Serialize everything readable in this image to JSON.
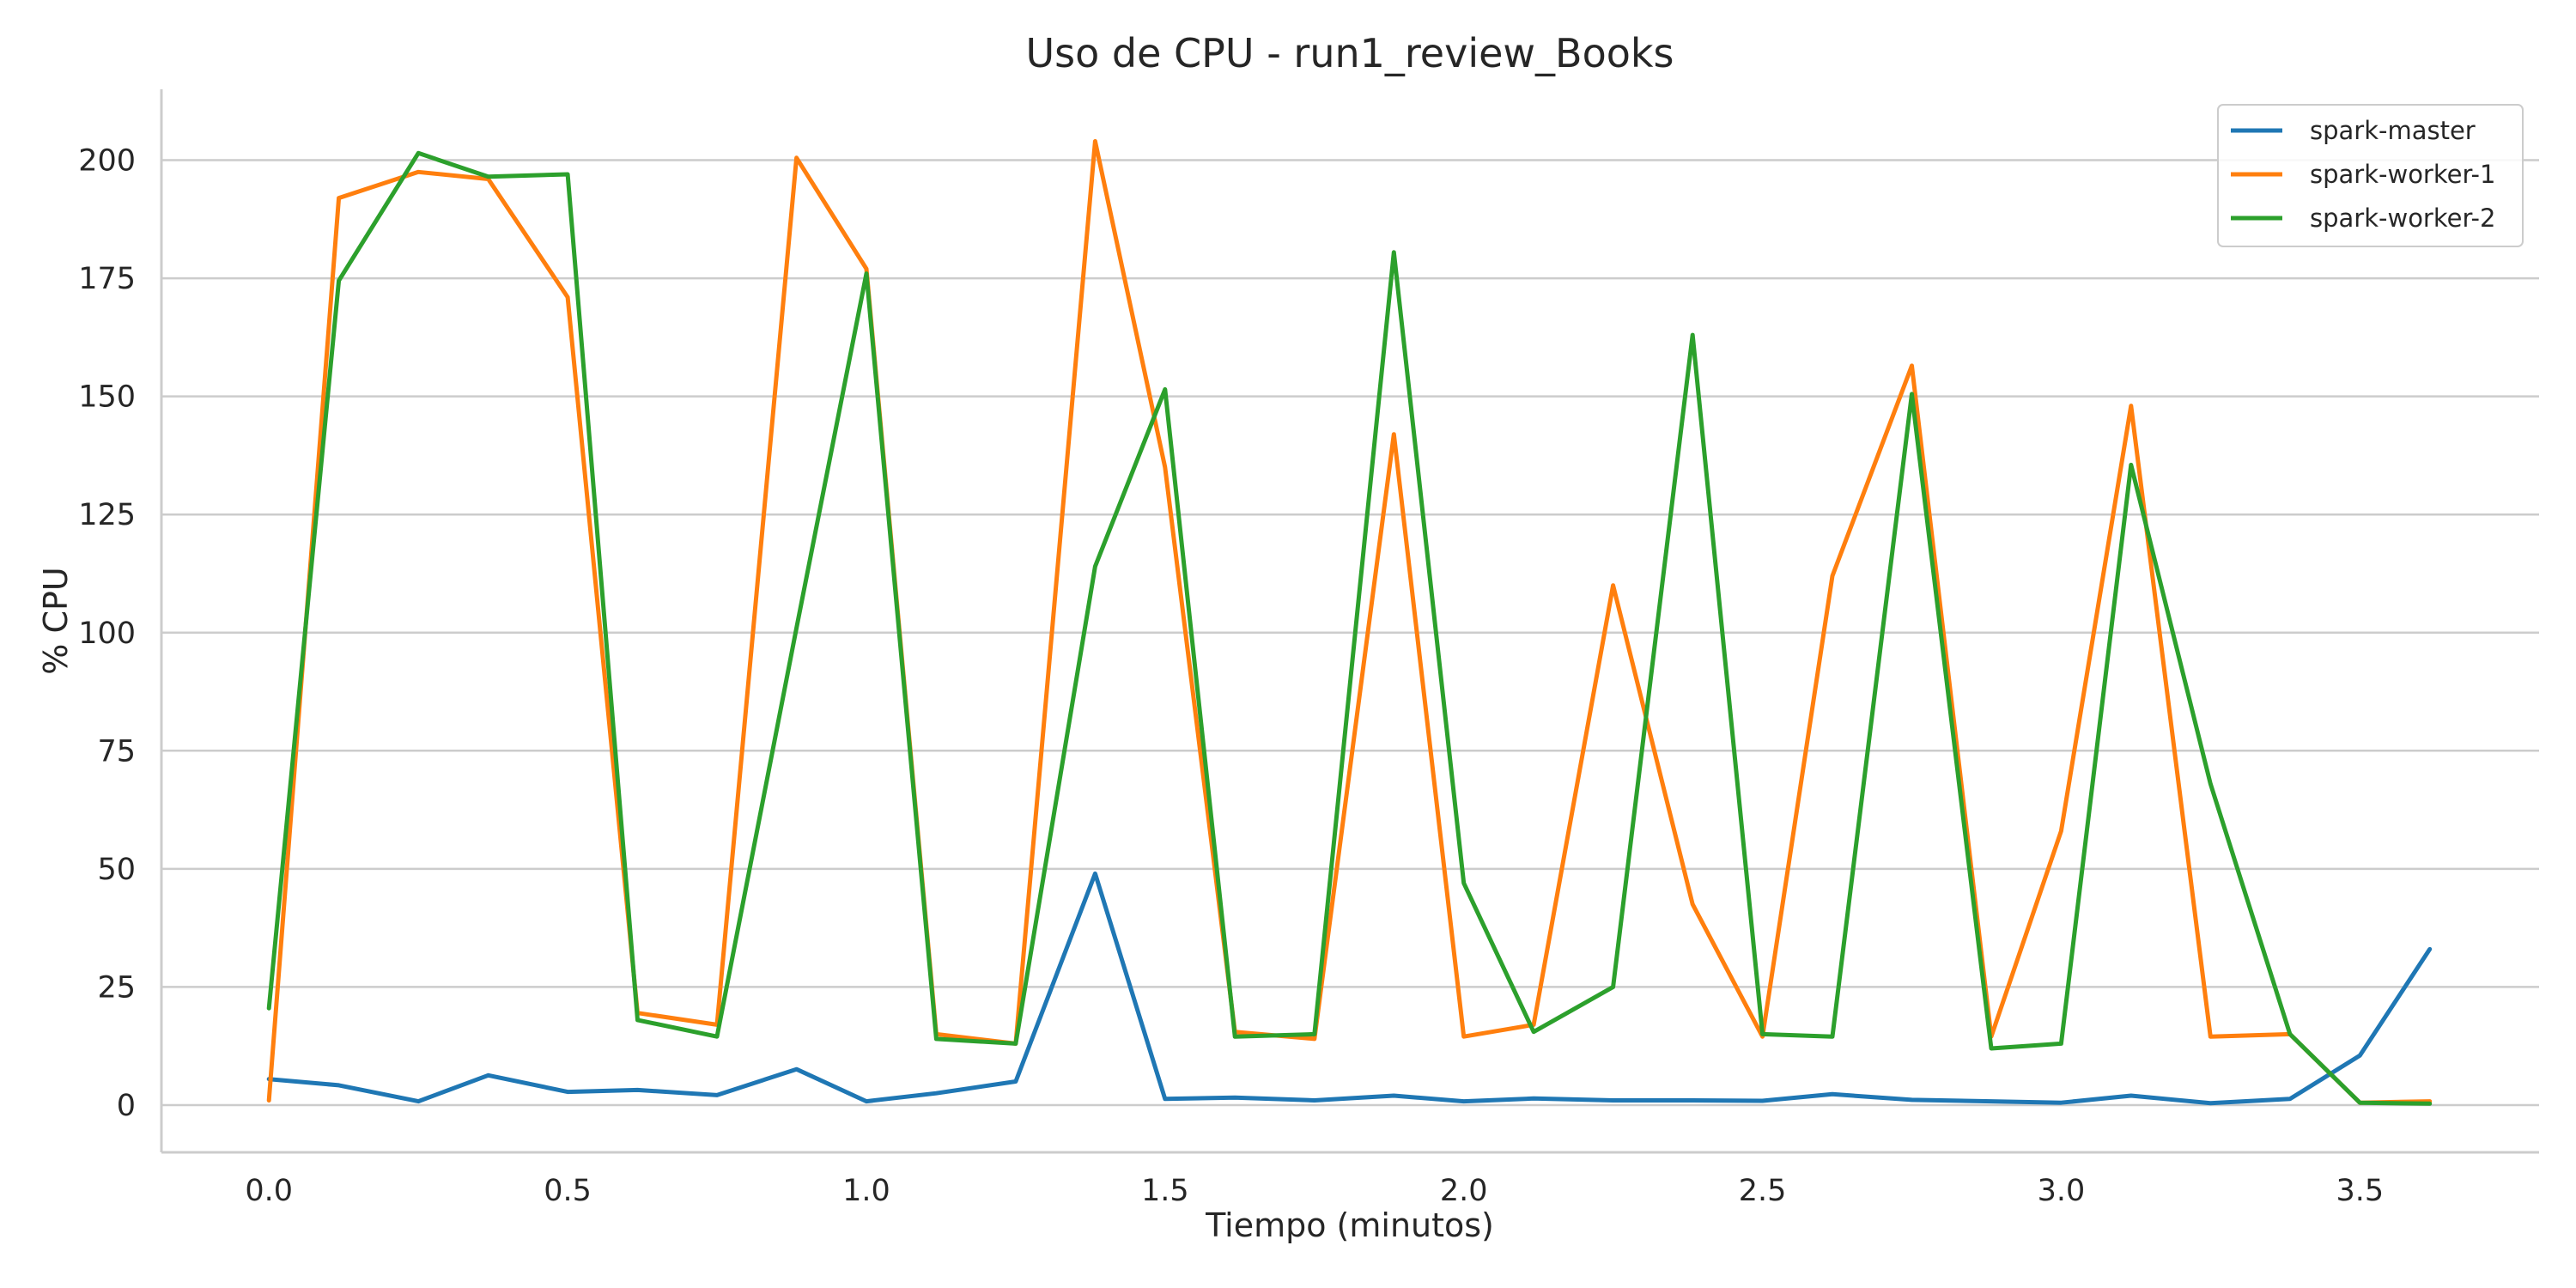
{
  "chart_data": {
    "type": "line",
    "title": "Uso de CPU - run1_review_Books",
    "xlabel": "Tiempo (minutos)",
    "ylabel": "% CPU",
    "xlim": [
      -0.18,
      3.8
    ],
    "ylim": [
      -10,
      215
    ],
    "xticks": [
      0.0,
      0.5,
      1.0,
      1.5,
      2.0,
      2.5,
      3.0,
      3.5
    ],
    "xtick_labels": [
      "0.0",
      "0.5",
      "1.0",
      "1.5",
      "2.0",
      "2.5",
      "3.0",
      "3.5"
    ],
    "yticks": [
      0,
      25,
      50,
      75,
      100,
      125,
      150,
      175,
      200
    ],
    "ytick_labels": [
      "0",
      "25",
      "50",
      "75",
      "100",
      "125",
      "150",
      "175",
      "200"
    ],
    "grid": "horizontal",
    "legend_position": "top-right",
    "x": [
      0.0,
      0.117,
      0.25,
      0.367,
      0.5,
      0.617,
      0.75,
      0.883,
      1.0,
      1.117,
      1.25,
      1.383,
      1.5,
      1.617,
      1.75,
      1.883,
      2.0,
      2.117,
      2.25,
      2.383,
      2.5,
      2.617,
      2.75,
      2.883,
      3.0,
      3.117,
      3.25,
      3.383,
      3.5,
      3.617
    ],
    "series": [
      {
        "name": "spark-master",
        "color": "#1f77b4",
        "values": [
          5.5,
          4.2,
          0.8,
          6.3,
          2.8,
          3.2,
          2.1,
          7.6,
          0.8,
          2.5,
          5.0,
          49.0,
          1.3,
          1.6,
          1.0,
          2.0,
          0.8,
          1.4,
          1.0,
          1.0,
          0.9,
          2.3,
          1.1,
          0.8,
          0.5,
          2.0,
          0.4,
          1.3,
          10.5,
          33.0
        ]
      },
      {
        "name": "spark-worker-1",
        "color": "#ff7f0e",
        "values": [
          1.0,
          192.0,
          197.5,
          196.0,
          171.0,
          19.5,
          17.0,
          200.5,
          177.0,
          15.0,
          13.0,
          204.0,
          135.0,
          15.5,
          14.0,
          142.0,
          14.5,
          17.0,
          110.0,
          42.5,
          14.5,
          112.0,
          156.5,
          14.5,
          58.0,
          148.0,
          14.5,
          15.0,
          0.5,
          0.8
        ]
      },
      {
        "name": "spark-worker-2",
        "color": "#2ca02c",
        "values": [
          20.5,
          174.5,
          201.5,
          196.5,
          197.0,
          18.0,
          14.5,
          101.0,
          176.0,
          14.0,
          13.0,
          114.0,
          151.5,
          14.5,
          15.0,
          180.5,
          47.0,
          15.5,
          25.0,
          163.0,
          15.0,
          14.5,
          150.5,
          12.0,
          13.0,
          135.5,
          68.0,
          15.0,
          0.5,
          0.3
        ]
      }
    ]
  }
}
